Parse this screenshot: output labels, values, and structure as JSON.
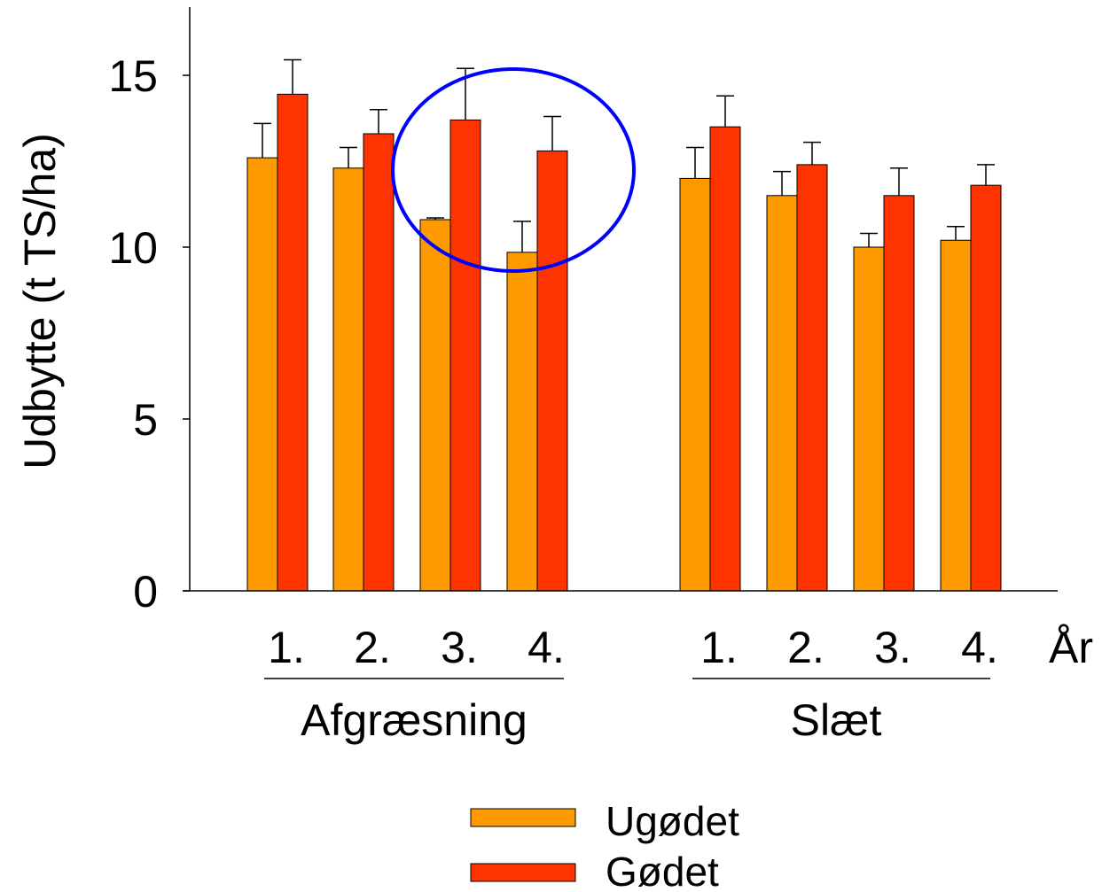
{
  "chart_data": {
    "type": "bar",
    "ylabel": "Udbytte (t TS/ha)",
    "ylim": [
      0,
      17
    ],
    "yticks": [
      "0",
      "5",
      "10",
      "15"
    ],
    "ytick_values": [
      0,
      5,
      10,
      15
    ],
    "x_unit_label": "År",
    "groups": [
      {
        "name": "Afgræsning",
        "categories": [
          "1.",
          "2.",
          "3.",
          "4."
        ]
      },
      {
        "name": "Slæt",
        "categories": [
          "1.",
          "2.",
          "3.",
          "4."
        ]
      }
    ],
    "series": [
      {
        "name": "Ugødet",
        "color": "#FF9900",
        "values": [
          12.6,
          12.3,
          10.8,
          9.85,
          12.0,
          11.5,
          10.0,
          10.2
        ],
        "errors": [
          1.0,
          0.6,
          0.05,
          0.9,
          0.9,
          0.7,
          0.4,
          0.4
        ]
      },
      {
        "name": "Gødet",
        "color": "#FF3300",
        "values": [
          14.45,
          13.3,
          13.7,
          12.8,
          13.5,
          12.4,
          11.5,
          11.8
        ],
        "errors": [
          1.0,
          0.7,
          1.5,
          1.0,
          0.9,
          0.65,
          0.8,
          0.6
        ]
      }
    ],
    "annotations": [
      {
        "type": "ellipse",
        "color": "#0000FF",
        "encloses": "Afgræsning 3. and 4."
      }
    ],
    "grid": false,
    "legend_position": "bottom-center"
  }
}
